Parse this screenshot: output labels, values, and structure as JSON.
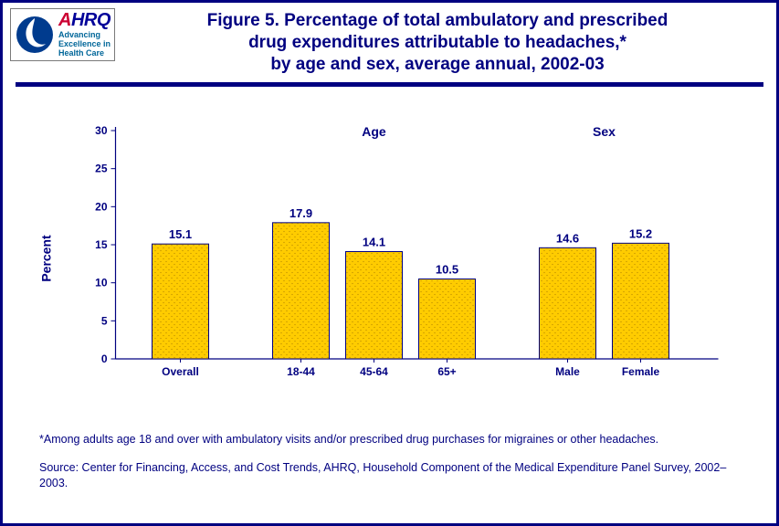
{
  "logo": {
    "ahrq_color_a": "#cc0033",
    "ahrq_color_rest": "#000099",
    "tagline_line1": "Advancing",
    "tagline_line2": "Excellence in",
    "tagline_line3": "Health Care"
  },
  "title": {
    "line1": "Figure 5. Percentage of total ambulatory and prescribed",
    "line2": "drug expenditures attributable to headaches,*",
    "line3": "by age and sex, average annual, 2002-03"
  },
  "chart": {
    "type": "bar",
    "ylabel": "Percent",
    "ymin": 0,
    "ymax": 30,
    "ytick_step": 5,
    "axis_color": "#000080",
    "bar_fill": "#ffcc00",
    "bar_stroke": "#000080",
    "bar_pattern_dot_color": "#b38600",
    "background": "#ffffff",
    "groups": [
      {
        "label": "",
        "bars": [
          {
            "cat": "Overall",
            "val": 15.1
          }
        ]
      },
      {
        "label": "Age",
        "bars": [
          {
            "cat": "18-44",
            "val": 17.9
          },
          {
            "cat": "45-64",
            "val": 14.1
          },
          {
            "cat": "65+",
            "val": 10.5
          }
        ]
      },
      {
        "label": "Sex",
        "bars": [
          {
            "cat": "Male",
            "val": 14.6
          },
          {
            "cat": "Female",
            "val": 15.2
          }
        ]
      }
    ]
  },
  "footnotes": {
    "note": "*Among adults age 18 and over with ambulatory visits and/or prescribed drug purchases for migraines or other headaches.",
    "source": "Source: Center for Financing, Access, and Cost Trends, AHRQ, Household Component of the Medical Expenditure Panel Survey, 2002–2003."
  }
}
